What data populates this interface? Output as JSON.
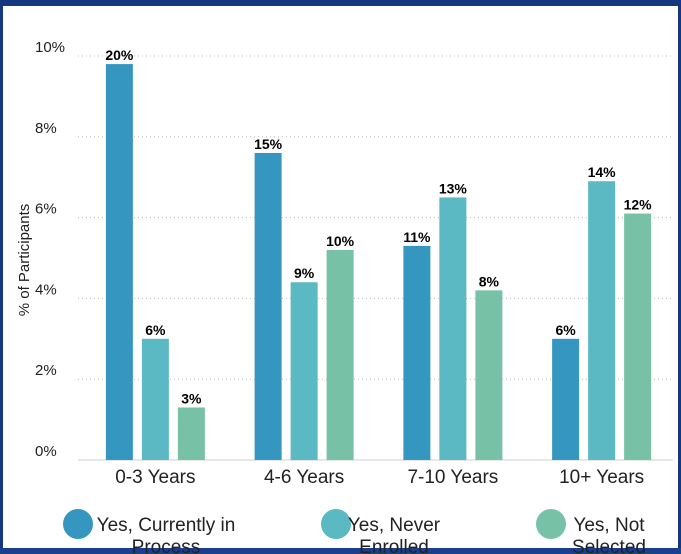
{
  "chart_data": {
    "type": "bar",
    "title": "",
    "xlabel": "",
    "ylabel": "% of Participants",
    "ylim": [
      0,
      10
    ],
    "yticks": [
      "0%",
      "2%",
      "4%",
      "6%",
      "8%",
      "10%"
    ],
    "grid": true,
    "legend_position": "bottom",
    "categories": [
      "0-3 Years",
      "4-6 Years",
      "7-10 Years",
      "10+ Years"
    ],
    "series": [
      {
        "name": "Yes, Currently in Process",
        "color": "#3597bf",
        "values": [
          9.8,
          7.6,
          5.3,
          3.0
        ],
        "labels": [
          "20%",
          "15%",
          "11%",
          "6%"
        ]
      },
      {
        "name": "Yes, Never Enrolled",
        "color": "#5bb9c4",
        "values": [
          3.0,
          4.4,
          6.5,
          6.9
        ],
        "labels": [
          "6%",
          "9%",
          "13%",
          "14%"
        ]
      },
      {
        "name": "Yes, Not Selected",
        "color": "#77c2a6",
        "values": [
          1.3,
          5.2,
          4.2,
          6.1
        ],
        "labels": [
          "3%",
          "10%",
          "8%",
          "12%"
        ]
      }
    ]
  }
}
